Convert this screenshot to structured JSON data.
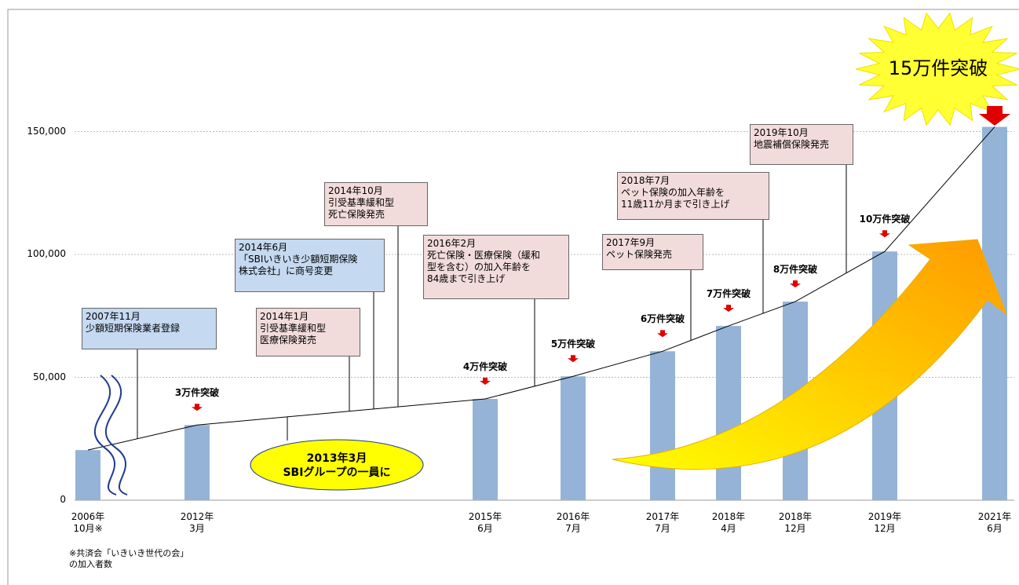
{
  "chart_data": {
    "type": "bar",
    "categories": [
      "2006年\n10月※",
      "2012年\n3月",
      "2015年\n6月",
      "2016年\n7月",
      "2017年\n7月",
      "2018年\n4月",
      "2018年\n12月",
      "2019年\n12月",
      "2021年\n6月"
    ],
    "values": [
      20400,
      30600,
      41200,
      50400,
      60600,
      70900,
      80800,
      101200,
      151900
    ],
    "value_labels": [
      null,
      "3万件突破",
      "4万件突破",
      "5万件突破",
      "6万件突破",
      "7万件突破",
      "8万件突破",
      "10万件突破",
      "15万件突破"
    ],
    "color": "#95b3d7",
    "ylim": [
      0,
      200000
    ],
    "yticks": [
      0,
      {
        "value": 50000,
        "label": "50,000"
      },
      {
        "value": 100000,
        "label": "100,000"
      },
      {
        "value": 150000,
        "label": "150,000"
      }
    ],
    "grid": true,
    "annotations": [
      {
        "text": "2007年11月\n少額短期保険業者登録",
        "color": "#c5d9f1"
      },
      {
        "text": "2014年1月\n引受基準緩和型\n医療保険発売",
        "color": "#f2dcdb"
      },
      {
        "text": "2014年6月\n「SBIいきいき少額短期保険\n株式会社」に商号変更",
        "color": "#c5d9f1"
      },
      {
        "text": "2014年10月\n引受基準緩和型\n死亡保険発売",
        "color": "#f2dcdb"
      },
      {
        "text": "2016年2月\n死亡保険・医療保険（緩和\n型を含む）の加入年齢を\n84歳まで引き上げ",
        "color": "#f2dcdb"
      },
      {
        "text": "2017年9月\nペット保険発売",
        "color": "#f2dcdb"
      },
      {
        "text": "2018年7月\nペット保険の加入年齢を\n11歳11か月まで引き上げ",
        "color": "#f2dcdb"
      },
      {
        "text": "2019年10月\n地震補償保険発売",
        "color": "#f2dcdb"
      }
    ],
    "highlight": "2013年3月\nSBIグループの一員に",
    "footnote": "※共済会「いきいき世代の会」\nの加入者数"
  }
}
